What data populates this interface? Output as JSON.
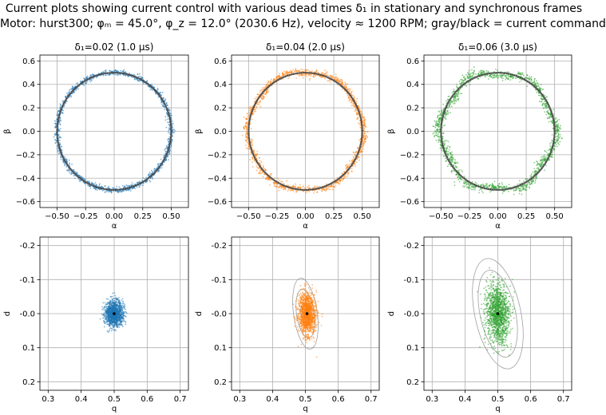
{
  "title": {
    "line1": "Current plots showing current control with various dead times δ₁ in stationary and synchronous frames",
    "line2": "Motor: hurst300; φₘ = 45.0°, φ_z = 12.0° (2030.6 Hz), velocity ≈ 1200 RPM; gray/black = current command"
  },
  "chart_data": [
    {
      "type": "scatter",
      "frame": "stationary",
      "title": "δ₁=0.02 (1.0 μs)",
      "xlabel": "α",
      "ylabel": "β",
      "xlim": [
        -0.65,
        0.65
      ],
      "ylim": [
        -0.65,
        0.65
      ],
      "xticks": [
        -0.5,
        -0.25,
        0.0,
        0.25,
        0.5
      ],
      "xticklabels": [
        "−0.50",
        "−0.25",
        "0.00",
        "0.25",
        "0.50"
      ],
      "yticks": [
        0.6,
        0.4,
        0.2,
        0.0,
        -0.2,
        -0.4,
        -0.6
      ],
      "yticklabels": [
        "0.6",
        "0.4",
        "0.2",
        "0.0",
        "−0.2",
        "−0.4",
        "−0.6"
      ],
      "grid": true,
      "color": "#1f77b4",
      "command_circle_radius": 0.5,
      "scatter_radius_mean": 0.5,
      "scatter_spread": 0.012,
      "ripple": 0.0
    },
    {
      "type": "scatter",
      "frame": "stationary",
      "title": "δ₁=0.04 (2.0 μs)",
      "xlabel": "α",
      "ylabel": "β",
      "xlim": [
        -0.65,
        0.65
      ],
      "ylim": [
        -0.65,
        0.65
      ],
      "xticks": [
        -0.5,
        -0.25,
        0.0,
        0.25,
        0.5
      ],
      "xticklabels": [
        "−0.50",
        "−0.25",
        "0.00",
        "0.25",
        "0.50"
      ],
      "yticks": [
        0.6,
        0.4,
        0.2,
        0.0,
        -0.2,
        -0.4,
        -0.6
      ],
      "yticklabels": [
        "0.6",
        "0.4",
        "0.2",
        "0.0",
        "−0.2",
        "−0.4",
        "−0.6"
      ],
      "grid": true,
      "color": "#ff7f0e",
      "command_circle_radius": 0.5,
      "scatter_radius_mean": 0.505,
      "scatter_spread": 0.016,
      "ripple": 0.012
    },
    {
      "type": "scatter",
      "frame": "stationary",
      "title": "δ₁=0.06 (3.0 μs)",
      "xlabel": "α",
      "ylabel": "β",
      "xlim": [
        -0.65,
        0.65
      ],
      "ylim": [
        -0.65,
        0.65
      ],
      "xticks": [
        -0.5,
        -0.25,
        0.0,
        0.25,
        0.5
      ],
      "xticklabels": [
        "−0.50",
        "−0.25",
        "0.00",
        "0.25",
        "0.50"
      ],
      "yticks": [
        0.6,
        0.4,
        0.2,
        0.0,
        -0.2,
        -0.4,
        -0.6
      ],
      "yticklabels": [
        "0.6",
        "0.4",
        "0.2",
        "0.0",
        "−0.2",
        "−0.4",
        "−0.6"
      ],
      "grid": true,
      "color": "#2ca02c",
      "command_circle_radius": 0.5,
      "scatter_radius_mean": 0.5,
      "scatter_spread": 0.02,
      "ripple": 0.025
    },
    {
      "type": "scatter",
      "frame": "synchronous",
      "xlabel": "q",
      "ylabel": "d",
      "xlim": [
        0.275,
        0.725
      ],
      "ylim": [
        0.225,
        -0.225
      ],
      "xticks": [
        0.3,
        0.4,
        0.5,
        0.6,
        0.7
      ],
      "xticklabels": [
        "0.3",
        "0.4",
        "0.5",
        "0.6",
        "0.7"
      ],
      "yticks": [
        -0.2,
        -0.1,
        0.0,
        0.1,
        0.2
      ],
      "yticklabels": [
        "-0.2",
        "-0.1",
        "-0.0",
        "0.1",
        "0.2"
      ],
      "grid": true,
      "color": "#1f77b4",
      "command_point": [
        0.5,
        0.0
      ],
      "cluster_center": [
        0.5,
        0.0
      ],
      "cluster_sd": [
        0.014,
        0.018
      ],
      "cluster_tilt_deg": 0,
      "contour_ellipses": []
    },
    {
      "type": "scatter",
      "frame": "synchronous",
      "xlabel": "q",
      "ylabel": "d",
      "xlim": [
        0.275,
        0.725
      ],
      "ylim": [
        0.225,
        -0.225
      ],
      "xticks": [
        0.3,
        0.4,
        0.5,
        0.6,
        0.7
      ],
      "xticklabels": [
        "0.3",
        "0.4",
        "0.5",
        "0.6",
        "0.7"
      ],
      "yticks": [
        -0.2,
        -0.1,
        0.0,
        0.1,
        0.2
      ],
      "yticklabels": [
        "-0.2",
        "-0.1",
        "-0.0",
        "0.1",
        "0.2"
      ],
      "grid": true,
      "color": "#ff7f0e",
      "command_point": [
        0.505,
        0.0
      ],
      "cluster_center": [
        0.505,
        0.0
      ],
      "cluster_sd": [
        0.013,
        0.03
      ],
      "cluster_tilt_deg": -8,
      "contour_ellipses": [
        {
          "center": [
            0.5,
            0.0
          ],
          "semi_q": 0.036,
          "semi_d": 0.105,
          "tilt_deg": -8
        },
        {
          "center": [
            0.5,
            0.0
          ],
          "semi_q": 0.027,
          "semi_d": 0.072,
          "tilt_deg": -8
        },
        {
          "center": [
            0.5,
            0.0
          ],
          "semi_q": 0.014,
          "semi_d": 0.03,
          "tilt_deg": -8
        }
      ]
    },
    {
      "type": "scatter",
      "frame": "synchronous",
      "xlabel": "q",
      "ylabel": "d",
      "xlim": [
        0.275,
        0.725
      ],
      "ylim": [
        0.225,
        -0.225
      ],
      "xticks": [
        0.3,
        0.4,
        0.5,
        0.6,
        0.7
      ],
      "xticklabels": [
        "0.3",
        "0.4",
        "0.5",
        "0.6",
        "0.7"
      ],
      "yticks": [
        -0.2,
        -0.1,
        0.0,
        0.1,
        0.2
      ],
      "yticklabels": [
        "-0.2",
        "-0.1",
        "-0.0",
        "0.1",
        "0.2"
      ],
      "grid": true,
      "color": "#2ca02c",
      "command_point": [
        0.5,
        0.0
      ],
      "cluster_center": [
        0.5,
        0.0
      ],
      "cluster_sd": [
        0.018,
        0.045
      ],
      "cluster_tilt_deg": -12,
      "contour_ellipses": [
        {
          "center": [
            0.5,
            0.0
          ],
          "semi_q": 0.07,
          "semi_d": 0.165,
          "tilt_deg": -12
        },
        {
          "center": [
            0.5,
            0.0
          ],
          "semi_q": 0.054,
          "semi_d": 0.13,
          "tilt_deg": -12
        }
      ]
    }
  ]
}
